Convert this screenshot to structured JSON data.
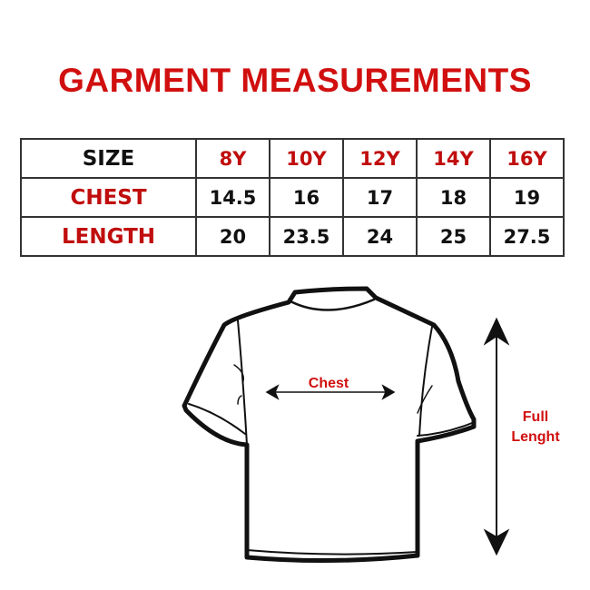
{
  "title": "GARMENT MEASUREMENTS",
  "table": {
    "header": {
      "label": "SIZE",
      "sizes": [
        "8Y",
        "10Y",
        "12Y",
        "14Y",
        "16Y"
      ]
    },
    "rows": [
      {
        "label": "CHEST",
        "values": [
          "14.5",
          "16",
          "17",
          "18",
          "19"
        ]
      },
      {
        "label": "LENGTH",
        "values": [
          "20",
          "23.5",
          "24",
          "25",
          "27.5"
        ]
      }
    ]
  },
  "diagram": {
    "chest_label": "Chest",
    "length_label_line1": "Full",
    "length_label_line2": "Lenght"
  },
  "colors": {
    "accent_red": "#d10f0f",
    "text": "#111111"
  }
}
